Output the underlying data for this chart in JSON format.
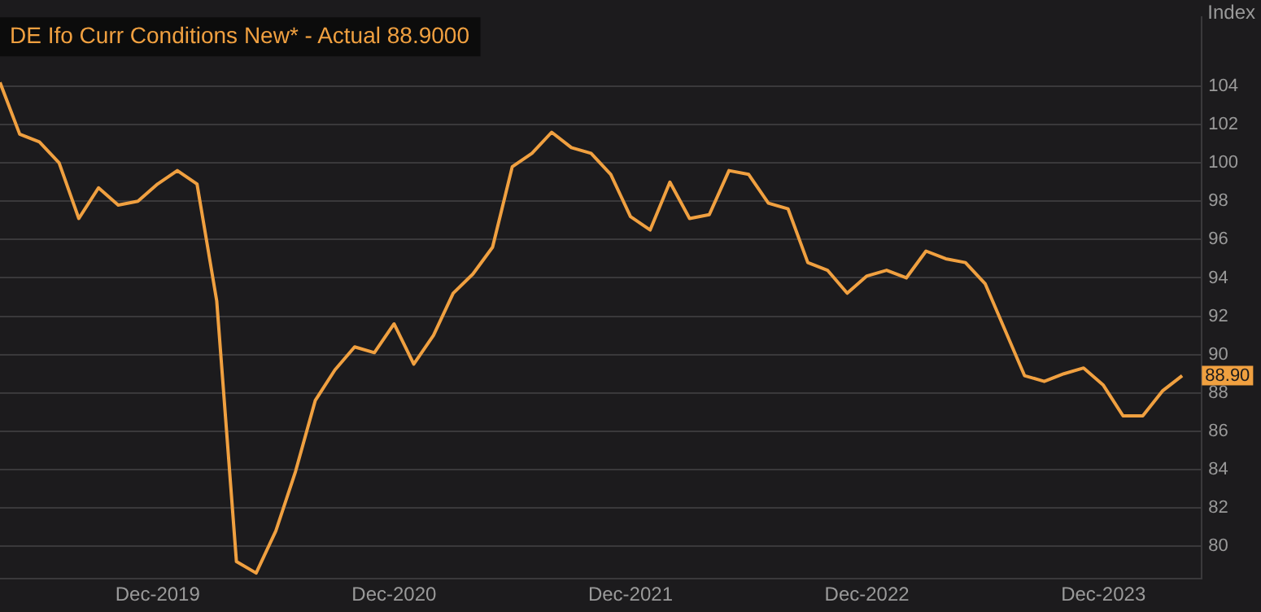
{
  "chart_data": {
    "type": "line",
    "title": "DE Ifo Curr Conditions New* - Actual 88.9000",
    "ylabel": "Index",
    "x": [
      "2019-04",
      "2019-05",
      "2019-06",
      "2019-07",
      "2019-08",
      "2019-09",
      "2019-10",
      "2019-11",
      "2019-12",
      "2020-01",
      "2020-02",
      "2020-03",
      "2020-04",
      "2020-05",
      "2020-06",
      "2020-07",
      "2020-08",
      "2020-09",
      "2020-10",
      "2020-11",
      "2020-12",
      "2021-01",
      "2021-02",
      "2021-03",
      "2021-04",
      "2021-05",
      "2021-06",
      "2021-07",
      "2021-08",
      "2021-09",
      "2021-10",
      "2021-11",
      "2021-12",
      "2022-01",
      "2022-02",
      "2022-03",
      "2022-04",
      "2022-05",
      "2022-06",
      "2022-07",
      "2022-08",
      "2022-09",
      "2022-10",
      "2022-11",
      "2022-12",
      "2023-01",
      "2023-02",
      "2023-03",
      "2023-04",
      "2023-05",
      "2023-06",
      "2023-07",
      "2023-08",
      "2023-09",
      "2023-10",
      "2023-11",
      "2023-12",
      "2024-01",
      "2024-02",
      "2024-03",
      "2024-04"
    ],
    "series": [
      {
        "color": "#f0a040",
        "values": [
          104.2,
          101.5,
          101.1,
          100.0,
          97.1,
          98.7,
          97.8,
          98.0,
          98.9,
          99.6,
          98.9,
          92.8,
          79.2,
          78.6,
          80.8,
          83.9,
          87.6,
          89.2,
          90.4,
          90.1,
          91.6,
          89.5,
          91.0,
          93.2,
          94.2,
          95.6,
          99.8,
          100.5,
          101.6,
          100.8,
          100.5,
          99.4,
          97.2,
          96.5,
          99.0,
          97.1,
          97.3,
          99.6,
          99.4,
          97.9,
          97.6,
          94.8,
          94.4,
          93.2,
          94.1,
          94.4,
          94.0,
          95.4,
          95.0,
          94.8,
          93.7,
          91.3,
          88.9,
          88.6,
          89.0,
          89.3,
          88.4,
          86.8,
          86.8,
          88.1,
          88.9
        ]
      }
    ],
    "xlim": [
      "2019-04",
      "2024-05"
    ],
    "xticks": [
      {
        "value": "2019-12",
        "label": "Dec-2019"
      },
      {
        "value": "2020-12",
        "label": "Dec-2020"
      },
      {
        "value": "2021-12",
        "label": "Dec-2021"
      },
      {
        "value": "2022-12",
        "label": "Dec-2022"
      },
      {
        "value": "2023-12",
        "label": "Dec-2023"
      }
    ],
    "ylim": [
      78.3,
      107.6
    ],
    "yticks": [
      80,
      82,
      84,
      86,
      88,
      90,
      92,
      94,
      96,
      98,
      100,
      102,
      104
    ],
    "annotations": [
      {
        "text": "88.90",
        "x": "2024-04",
        "y": 88.9
      }
    ],
    "grid": "y",
    "legend": false,
    "marker": "none",
    "line_style": "solid"
  }
}
